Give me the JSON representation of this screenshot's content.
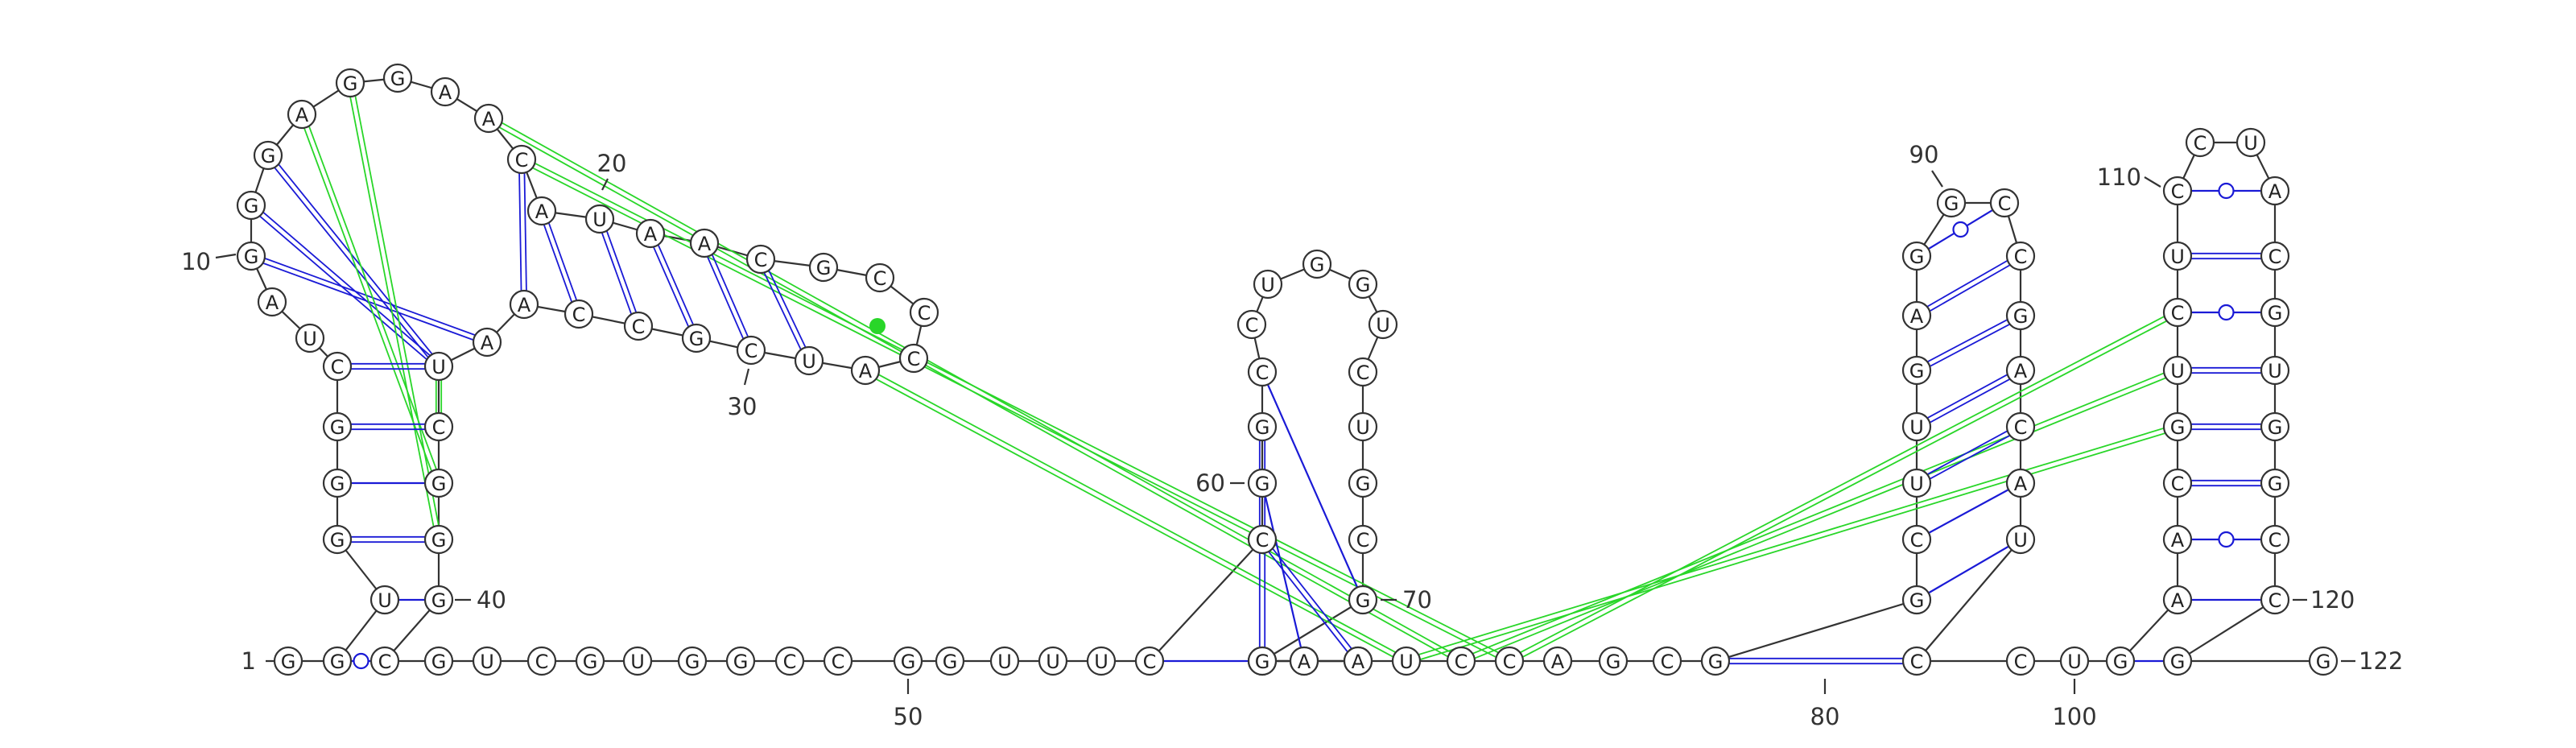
{
  "sequence_length": 122,
  "sequence": "GGUGGGCUAGGGAGGAACAUAACGCCCAUCGCCAAUCGGGCGUCGUGGCCGGUUUCCGGCCUGGUCUGCGUCCGAAUCCAGCGGCUUGAGGCCGACAUCCUGAACGUCUCCUACGUGGCCGG",
  "colors": {
    "backbone": "#333333",
    "canonical_pair": "#1a1ad6",
    "gu_pair": "#1a1ad6",
    "pseudoknot_pair": "#29d629",
    "pseudoknot_marker": "#29d629"
  },
  "position_labels": [
    {
      "pos": 1,
      "text": "1"
    },
    {
      "pos": 10,
      "text": "10"
    },
    {
      "pos": 20,
      "text": "20"
    },
    {
      "pos": 30,
      "text": "30"
    },
    {
      "pos": 40,
      "text": "40"
    },
    {
      "pos": 50,
      "text": "50"
    },
    {
      "pos": 60,
      "text": "60"
    },
    {
      "pos": 70,
      "text": "70"
    },
    {
      "pos": 80,
      "text": "80"
    },
    {
      "pos": 90,
      "text": "90"
    },
    {
      "pos": 100,
      "text": "100"
    },
    {
      "pos": 110,
      "text": "110"
    },
    {
      "pos": 120,
      "text": "120"
    },
    {
      "pos": 122,
      "text": "122"
    }
  ],
  "secondary_structure_pairs": [
    {
      "i": 2,
      "j": 41,
      "type": "wobble"
    },
    {
      "i": 3,
      "j": 40,
      "type": "AU"
    },
    {
      "i": 4,
      "j": 39,
      "type": "GC"
    },
    {
      "i": 5,
      "j": 38,
      "type": "UA"
    },
    {
      "i": 6,
      "j": 37,
      "type": "GC"
    },
    {
      "i": 7,
      "j": 36,
      "type": "GC"
    },
    {
      "i": 18,
      "j": 34,
      "type": "GC"
    },
    {
      "i": 19,
      "j": 33,
      "type": "GC"
    },
    {
      "i": 20,
      "j": 32,
      "type": "GC"
    },
    {
      "i": 21,
      "j": 31,
      "type": "GC"
    },
    {
      "i": 22,
      "j": 30,
      "type": "GC"
    },
    {
      "i": 23,
      "j": 29,
      "type": "GC"
    },
    {
      "i": 56,
      "j": 74,
      "type": "AU"
    },
    {
      "i": 57,
      "j": 73,
      "type": "GC"
    },
    {
      "i": 58,
      "j": 72,
      "type": "UA"
    },
    {
      "i": 59,
      "j": 71,
      "type": "CG"
    },
    {
      "i": 60,
      "j": 70,
      "type": "UA"
    },
    {
      "i": 83,
      "j": 99,
      "type": "GC"
    },
    {
      "i": 84,
      "j": 98,
      "type": "AU"
    },
    {
      "i": 85,
      "j": 97,
      "type": "UA"
    },
    {
      "i": 86,
      "j": 96,
      "type": "CG"
    },
    {
      "i": 87,
      "j": 95,
      "type": "CG"
    },
    {
      "i": 88,
      "j": 94,
      "type": "GC"
    },
    {
      "i": 89,
      "j": 93,
      "type": "GC"
    },
    {
      "i": 90,
      "j": 92,
      "type": "wobble"
    },
    {
      "i": 102,
      "j": 121,
      "type": "AU"
    },
    {
      "i": 103,
      "j": 120,
      "type": "AU"
    },
    {
      "i": 104,
      "j": 119,
      "type": "wobble"
    },
    {
      "i": 105,
      "j": 118,
      "type": "CG"
    },
    {
      "i": 106,
      "j": 117,
      "type": "GC"
    },
    {
      "i": 107,
      "j": 116,
      "type": "GC"
    },
    {
      "i": 108,
      "j": 115,
      "type": "wobble"
    },
    {
      "i": 109,
      "j": 114,
      "type": "CG"
    },
    {
      "i": 110,
      "j": 113,
      "type": "wobble"
    }
  ],
  "tertiary_pairs": [
    {
      "i": 35,
      "j": 10,
      "color": "blue"
    },
    {
      "i": 36,
      "j": 11,
      "color": "blue"
    },
    {
      "i": 36,
      "j": 12,
      "color": "blue"
    },
    {
      "i": 17,
      "j": 78,
      "color": "green"
    },
    {
      "i": 18,
      "j": 79,
      "color": "green"
    },
    {
      "i": 28,
      "j": 77,
      "color": "green"
    },
    {
      "i": 38,
      "j": 13,
      "color": "green"
    },
    {
      "i": 39,
      "j": 14,
      "color": "green"
    },
    {
      "i": 36,
      "j": 37,
      "color": "green"
    },
    {
      "i": 77,
      "j": 106,
      "color": "green"
    },
    {
      "i": 78,
      "j": 107,
      "color": "green"
    },
    {
      "i": 79,
      "j": 108,
      "color": "green"
    }
  ]
}
